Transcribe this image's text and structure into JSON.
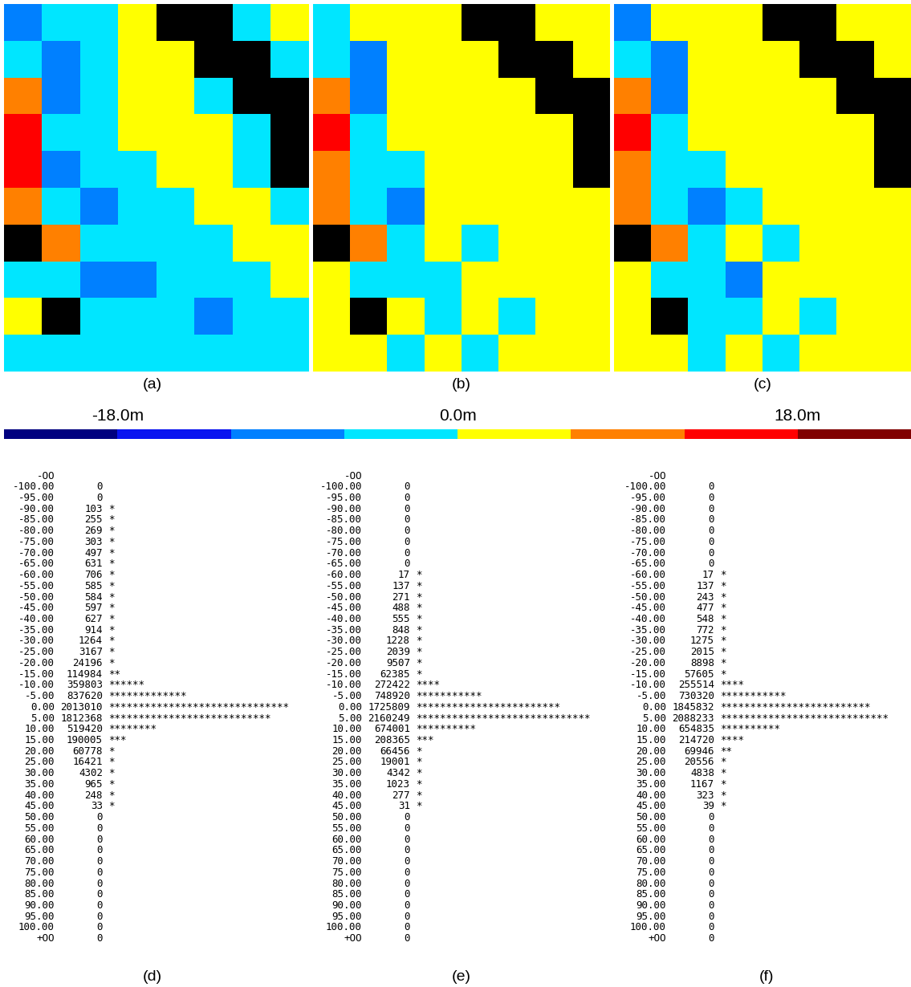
{
  "chart_data": [
    {
      "type": "heatmap",
      "label": "(a)",
      "cells": [
        [
          -9,
          -4,
          -3,
          0,
          null,
          null,
          -2,
          2
        ],
        [
          -5,
          -10,
          -3,
          2,
          1,
          null,
          null,
          -3
        ],
        [
          10,
          -12,
          -2,
          3,
          2,
          -2,
          null,
          null
        ],
        [
          14,
          -6,
          -3,
          2,
          3,
          1,
          -2,
          null
        ],
        [
          12,
          -8,
          -4,
          -2,
          2,
          3,
          -3,
          null
        ],
        [
          8,
          -5,
          -10,
          -4,
          -2,
          2,
          1,
          -2
        ],
        [
          null,
          10,
          -6,
          -3,
          -4,
          -2,
          3,
          1
        ],
        [
          -3,
          -4,
          -8,
          -10,
          -4,
          -3,
          -2,
          2
        ],
        [
          3,
          null,
          -4,
          -6,
          -3,
          -8,
          -4,
          -3
        ],
        [
          -2,
          -3,
          -5,
          -3,
          -6,
          -4,
          -2,
          -3
        ]
      ]
    },
    {
      "type": "heatmap",
      "label": "(b)",
      "cells": [
        [
          -6,
          1,
          2,
          3,
          null,
          null,
          2,
          4
        ],
        [
          -2,
          -8,
          1,
          4,
          3,
          null,
          null,
          1
        ],
        [
          9,
          -10,
          2,
          4,
          4,
          2,
          null,
          null
        ],
        [
          13,
          -3,
          1,
          3,
          4,
          3,
          2,
          null
        ],
        [
          10,
          -5,
          -2,
          2,
          3,
          4,
          1,
          null
        ],
        [
          6,
          -2,
          -7,
          1,
          2,
          3,
          3,
          2
        ],
        [
          null,
          8,
          -3,
          1,
          -1,
          2,
          4,
          3
        ],
        [
          2,
          -1,
          -5,
          -6,
          1,
          2,
          2,
          4
        ],
        [
          4,
          null,
          1,
          -3,
          2,
          -4,
          1,
          2
        ],
        [
          3,
          2,
          -1,
          2,
          -2,
          1,
          3,
          2
        ]
      ]
    },
    {
      "type": "heatmap",
      "label": "(c)",
      "cells": [
        [
          -7,
          1,
          1,
          3,
          null,
          null,
          2,
          3
        ],
        [
          -3,
          -8,
          1,
          3,
          3,
          null,
          null,
          1
        ],
        [
          10,
          -10,
          1,
          4,
          3,
          1,
          null,
          null
        ],
        [
          14,
          -4,
          1,
          3,
          4,
          2,
          1,
          null
        ],
        [
          11,
          -6,
          -2,
          1,
          3,
          4,
          1,
          null
        ],
        [
          7,
          -3,
          -8,
          -1,
          2,
          3,
          2,
          2
        ],
        [
          null,
          9,
          -4,
          1,
          -2,
          1,
          4,
          2
        ],
        [
          1,
          -2,
          -6,
          -7,
          1,
          1,
          2,
          3
        ],
        [
          4,
          null,
          -1,
          -4,
          1,
          -5,
          1,
          2
        ],
        [
          2,
          1,
          -2,
          1,
          -3,
          1,
          2,
          1
        ]
      ]
    },
    {
      "type": "text_histogram",
      "label": "(d)",
      "rows": [
        [
          "-OO"
        ],
        [
          "-100.00",
          0
        ],
        [
          "-95.00",
          0
        ],
        [
          "-90.00",
          103,
          "*"
        ],
        [
          "-85.00",
          255,
          "*"
        ],
        [
          "-80.00",
          269,
          "*"
        ],
        [
          "-75.00",
          303,
          "*"
        ],
        [
          "-70.00",
          497,
          "*"
        ],
        [
          "-65.00",
          631,
          "*"
        ],
        [
          "-60.00",
          706,
          "*"
        ],
        [
          "-55.00",
          585,
          "*"
        ],
        [
          "-50.00",
          584,
          "*"
        ],
        [
          "-45.00",
          597,
          "*"
        ],
        [
          "-40.00",
          627,
          "*"
        ],
        [
          "-35.00",
          914,
          "*"
        ],
        [
          "-30.00",
          1264,
          "*"
        ],
        [
          "-25.00",
          3167,
          "*"
        ],
        [
          "-20.00",
          24196,
          "*"
        ],
        [
          "-15.00",
          114984,
          "**"
        ],
        [
          "-10.00",
          359803,
          "******"
        ],
        [
          "-5.00",
          837620,
          "*************"
        ],
        [
          "0.00",
          2013010,
          "******************************"
        ],
        [
          "5.00",
          1812368,
          "***************************"
        ],
        [
          "10.00",
          519420,
          "********"
        ],
        [
          "15.00",
          190005,
          "***"
        ],
        [
          "20.00",
          60778,
          "*"
        ],
        [
          "25.00",
          16421,
          "*"
        ],
        [
          "30.00",
          4302,
          "*"
        ],
        [
          "35.00",
          965,
          "*"
        ],
        [
          "40.00",
          248,
          "*"
        ],
        [
          "45.00",
          33,
          "*"
        ],
        [
          "50.00",
          0
        ],
        [
          "55.00",
          0
        ],
        [
          "60.00",
          0
        ],
        [
          "65.00",
          0
        ],
        [
          "70.00",
          0
        ],
        [
          "75.00",
          0
        ],
        [
          "80.00",
          0
        ],
        [
          "85.00",
          0
        ],
        [
          "90.00",
          0
        ],
        [
          "95.00",
          0
        ],
        [
          "100.00",
          0
        ],
        [
          "+OO",
          0
        ]
      ]
    },
    {
      "type": "text_histogram",
      "label": "(e)",
      "rows": [
        [
          "-OO"
        ],
        [
          "-100.00",
          0
        ],
        [
          "-95.00",
          0
        ],
        [
          "-90.00",
          0
        ],
        [
          "-85.00",
          0
        ],
        [
          "-80.00",
          0
        ],
        [
          "-75.00",
          0
        ],
        [
          "-70.00",
          0
        ],
        [
          "-65.00",
          0
        ],
        [
          "-60.00",
          17,
          "*"
        ],
        [
          "-55.00",
          137,
          "*"
        ],
        [
          "-50.00",
          271,
          "*"
        ],
        [
          "-45.00",
          488,
          "*"
        ],
        [
          "-40.00",
          555,
          "*"
        ],
        [
          "-35.00",
          848,
          "*"
        ],
        [
          "-30.00",
          1228,
          "*"
        ],
        [
          "-25.00",
          2039,
          "*"
        ],
        [
          "-20.00",
          9507,
          "*"
        ],
        [
          "-15.00",
          62385,
          "*"
        ],
        [
          "-10.00",
          272422,
          "****"
        ],
        [
          "-5.00",
          748920,
          "***********"
        ],
        [
          "0.00",
          1725809,
          "************************"
        ],
        [
          "5.00",
          2160249,
          "*****************************"
        ],
        [
          "10.00",
          674001,
          "**********"
        ],
        [
          "15.00",
          208365,
          "***"
        ],
        [
          "20.00",
          66456,
          "*"
        ],
        [
          "25.00",
          19001,
          "*"
        ],
        [
          "30.00",
          4342,
          "*"
        ],
        [
          "35.00",
          1023,
          "*"
        ],
        [
          "40.00",
          277,
          "*"
        ],
        [
          "45.00",
          31,
          "*"
        ],
        [
          "50.00",
          0
        ],
        [
          "55.00",
          0
        ],
        [
          "60.00",
          0
        ],
        [
          "65.00",
          0
        ],
        [
          "70.00",
          0
        ],
        [
          "75.00",
          0
        ],
        [
          "80.00",
          0
        ],
        [
          "85.00",
          0
        ],
        [
          "90.00",
          0
        ],
        [
          "95.00",
          0
        ],
        [
          "100.00",
          0
        ],
        [
          "+OO",
          0
        ]
      ]
    },
    {
      "type": "text_histogram",
      "label": "(f)",
      "rows": [
        [
          "-OO"
        ],
        [
          "-100.00",
          0
        ],
        [
          "-95.00",
          0
        ],
        [
          "-90.00",
          0
        ],
        [
          "-85.00",
          0
        ],
        [
          "-80.00",
          0
        ],
        [
          "-75.00",
          0
        ],
        [
          "-70.00",
          0
        ],
        [
          "-65.00",
          0
        ],
        [
          "-60.00",
          17,
          "*"
        ],
        [
          "-55.00",
          137,
          "*"
        ],
        [
          "-50.00",
          243,
          "*"
        ],
        [
          "-45.00",
          477,
          "*"
        ],
        [
          "-40.00",
          548,
          "*"
        ],
        [
          "-35.00",
          772,
          "*"
        ],
        [
          "-30.00",
          1275,
          "*"
        ],
        [
          "-25.00",
          2015,
          "*"
        ],
        [
          "-20.00",
          8898,
          "*"
        ],
        [
          "-15.00",
          57605,
          "*"
        ],
        [
          "-10.00",
          255514,
          "****"
        ],
        [
          "-5.00",
          730320,
          "***********"
        ],
        [
          "0.00",
          1845832,
          "*************************"
        ],
        [
          "5.00",
          2088233,
          "****************************"
        ],
        [
          "10.00",
          654835,
          "**********"
        ],
        [
          "15.00",
          214720,
          "****"
        ],
        [
          "20.00",
          69946,
          "**"
        ],
        [
          "25.00",
          20556,
          "*"
        ],
        [
          "30.00",
          4838,
          "*"
        ],
        [
          "35.00",
          1167,
          "*"
        ],
        [
          "40.00",
          323,
          "*"
        ],
        [
          "45.00",
          39,
          "*"
        ],
        [
          "50.00",
          0
        ],
        [
          "55.00",
          0
        ],
        [
          "60.00",
          0
        ],
        [
          "65.00",
          0
        ],
        [
          "70.00",
          0
        ],
        [
          "75.00",
          0
        ],
        [
          "80.00",
          0
        ],
        [
          "85.00",
          0
        ],
        [
          "90.00",
          0
        ],
        [
          "95.00",
          0
        ],
        [
          "100.00",
          0
        ],
        [
          "+OO",
          0
        ]
      ]
    }
  ],
  "color_scale": {
    "range": [
      -24,
      24
    ],
    "levels": [
      -24,
      -18,
      -12,
      -6,
      0,
      6,
      12,
      18,
      24
    ],
    "colors": [
      "#00007f",
      "#0a14f0",
      "#0080ff",
      "#00e6ff",
      "#ffff00",
      "#ff8000",
      "#ff0000",
      "#800000"
    ],
    "null_color": "#000000",
    "ticks": [
      {
        "value": -18,
        "label": "-18.0m"
      },
      {
        "value": 0,
        "label": "0.0m"
      },
      {
        "value": 18,
        "label": "18.0m"
      }
    ]
  }
}
